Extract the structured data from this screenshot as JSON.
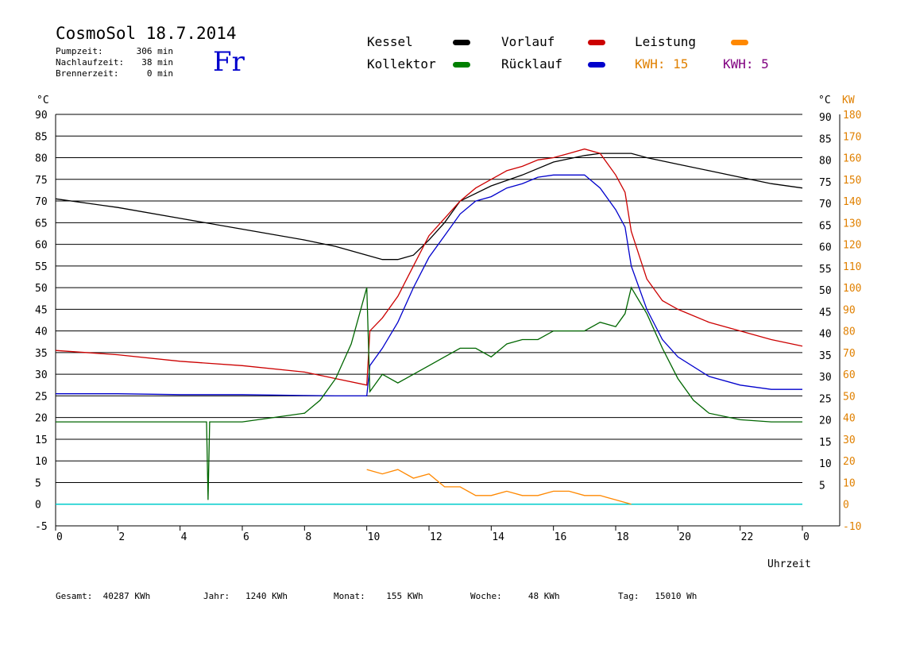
{
  "header": {
    "title": "CosmoSol 18.7.2014",
    "day": "Fr",
    "stats": [
      {
        "label": "Pumpzeit:",
        "value": "306 min"
      },
      {
        "label": "Nachlaufzeit:",
        "value": "38 min"
      },
      {
        "label": "Brennerzeit:",
        "value": "0 min"
      }
    ]
  },
  "legend": {
    "kessel": "Kessel",
    "vorlauf": "Vorlauf",
    "leistung": "Leistung",
    "kollektor": "Kollektor",
    "ruecklauf": "Rücklauf",
    "kwh1_label": "KWH:",
    "kwh1_value": "15",
    "kwh2_label": "KWH:",
    "kwh2_value": "5"
  },
  "colors": {
    "kessel": "#000000",
    "vorlauf": "#cc0000",
    "ruecklauf": "#0000cc",
    "kollektor": "#006600",
    "leistung": "#ff8800",
    "kwh2": "#800080",
    "zero_line": "#00cccc",
    "kw_axis": "#e08000"
  },
  "footer": {
    "gesamt_label": "Gesamt:",
    "gesamt_value": "40287 KWh",
    "jahr_label": "Jahr:",
    "jahr_value": "1240 KWh",
    "monat_label": "Monat:",
    "monat_value": "155 KWh",
    "woche_label": "Woche:",
    "woche_value": "48 KWh",
    "tag_label": "Tag:",
    "tag_value": "15010 Wh"
  },
  "chart_data": {
    "type": "line",
    "xlabel": "Uhrzeit",
    "y_left_unit": "°C",
    "y_right_unit_c": "°C",
    "y_right_unit_kw": "KW",
    "xlim": [
      0,
      24
    ],
    "ylim": [
      -5,
      90
    ],
    "y2lim": [
      -10,
      180
    ],
    "x_ticks": [
      "0",
      "2",
      "4",
      "6",
      "8",
      "10",
      "12",
      "14",
      "16",
      "18",
      "20",
      "22",
      "0"
    ],
    "y_left_ticks": [
      "90",
      "85",
      "80",
      "75",
      "70",
      "65",
      "60",
      "55",
      "50",
      "45",
      "40",
      "35",
      "30",
      "25",
      "20",
      "15",
      "10",
      "5",
      "0",
      "-5"
    ],
    "y_right_c_ticks": [
      "90",
      "85",
      "80",
      "75",
      "70",
      "65",
      "60",
      "55",
      "50",
      "45",
      "40",
      "35",
      "30",
      "25",
      "20",
      "15",
      "10",
      "5"
    ],
    "y_right_kw_ticks": [
      "180",
      "170",
      "160",
      "150",
      "140",
      "130",
      "120",
      "110",
      "100",
      "90",
      "80",
      "70",
      "60",
      "50",
      "40",
      "30",
      "20",
      "10",
      "0",
      "-10"
    ],
    "grid": true,
    "series": [
      {
        "name": "Kessel",
        "color": "#000000",
        "x": [
          0,
          2,
          4,
          6,
          8,
          9,
          10,
          10.5,
          11,
          11.5,
          12,
          12.5,
          13,
          14,
          15,
          16,
          17,
          17.5,
          18,
          18.5,
          19,
          20,
          21,
          22,
          23,
          24
        ],
        "y": [
          70.5,
          68.5,
          66,
          63.5,
          61,
          59.5,
          57.5,
          56.5,
          56.5,
          57.5,
          61,
          65,
          70,
          73.5,
          76,
          79,
          80.5,
          81,
          81,
          81,
          80,
          78.5,
          77,
          75.5,
          74,
          73
        ]
      },
      {
        "name": "Vorlauf",
        "color": "#cc0000",
        "x": [
          0,
          2,
          4,
          6,
          8,
          9,
          10,
          10.1,
          10.5,
          11,
          11.5,
          12,
          12.5,
          13,
          13.5,
          14,
          14.5,
          15,
          15.5,
          16,
          16.5,
          17,
          17.5,
          18,
          18.3,
          18.5,
          19,
          19.5,
          20,
          21,
          22,
          23,
          24
        ],
        "y": [
          35.5,
          34.5,
          33,
          32,
          30.5,
          29,
          27.5,
          40,
          43,
          48,
          55,
          62,
          66,
          70,
          73,
          75,
          77,
          78,
          79.5,
          80,
          81,
          82,
          81,
          76,
          72,
          63,
          52,
          47,
          45,
          42,
          40,
          38,
          36.5
        ]
      },
      {
        "name": "Rücklauf",
        "color": "#0000cc",
        "x": [
          0,
          2,
          4,
          6,
          8,
          9,
          10,
          10.1,
          10.5,
          11,
          11.5,
          12,
          12.5,
          13,
          13.5,
          14,
          14.5,
          15,
          15.5,
          16,
          16.5,
          17,
          17.5,
          18,
          18.3,
          18.5,
          19,
          19.5,
          20,
          21,
          22,
          23,
          24
        ],
        "y": [
          25.5,
          25.5,
          25.3,
          25.3,
          25.1,
          25,
          25,
          32,
          36,
          42,
          50,
          57,
          62,
          67,
          70,
          71,
          73,
          74,
          75.5,
          76,
          76,
          76,
          73,
          68,
          64,
          55,
          45,
          38,
          34,
          29.5,
          27.5,
          26.5,
          26.5
        ]
      },
      {
        "name": "Kollektor",
        "color": "#006600",
        "x": [
          0,
          2,
          4,
          4.85,
          4.9,
          4.95,
          6,
          8,
          8.5,
          9,
          9.5,
          10,
          10.1,
          10.5,
          11,
          11.5,
          12,
          12.5,
          13,
          13.5,
          14,
          14.5,
          15,
          15.5,
          16,
          16.5,
          17,
          17.5,
          18,
          18.3,
          18.5,
          19,
          19.5,
          20,
          20.5,
          21,
          22,
          23,
          24
        ],
        "y": [
          19,
          19,
          19,
          19,
          1,
          19,
          19,
          21,
          24,
          29,
          37,
          50,
          26,
          30,
          28,
          30,
          32,
          34,
          36,
          36,
          34,
          37,
          38,
          38,
          40,
          40,
          40,
          42,
          41,
          44,
          50,
          44,
          36,
          29,
          24,
          21,
          19.5,
          19,
          19
        ]
      },
      {
        "name": "Leistung",
        "color": "#ff8800",
        "x": [
          10,
          10.5,
          11,
          11.5,
          12,
          12.5,
          13,
          13.5,
          14,
          14.5,
          15,
          15.5,
          16,
          16.5,
          17,
          17.5,
          18,
          18.5
        ],
        "y": [
          8,
          7,
          8,
          6,
          7,
          4,
          4,
          2,
          2,
          3,
          2,
          2,
          3,
          3,
          2,
          2,
          1,
          0
        ]
      }
    ]
  }
}
